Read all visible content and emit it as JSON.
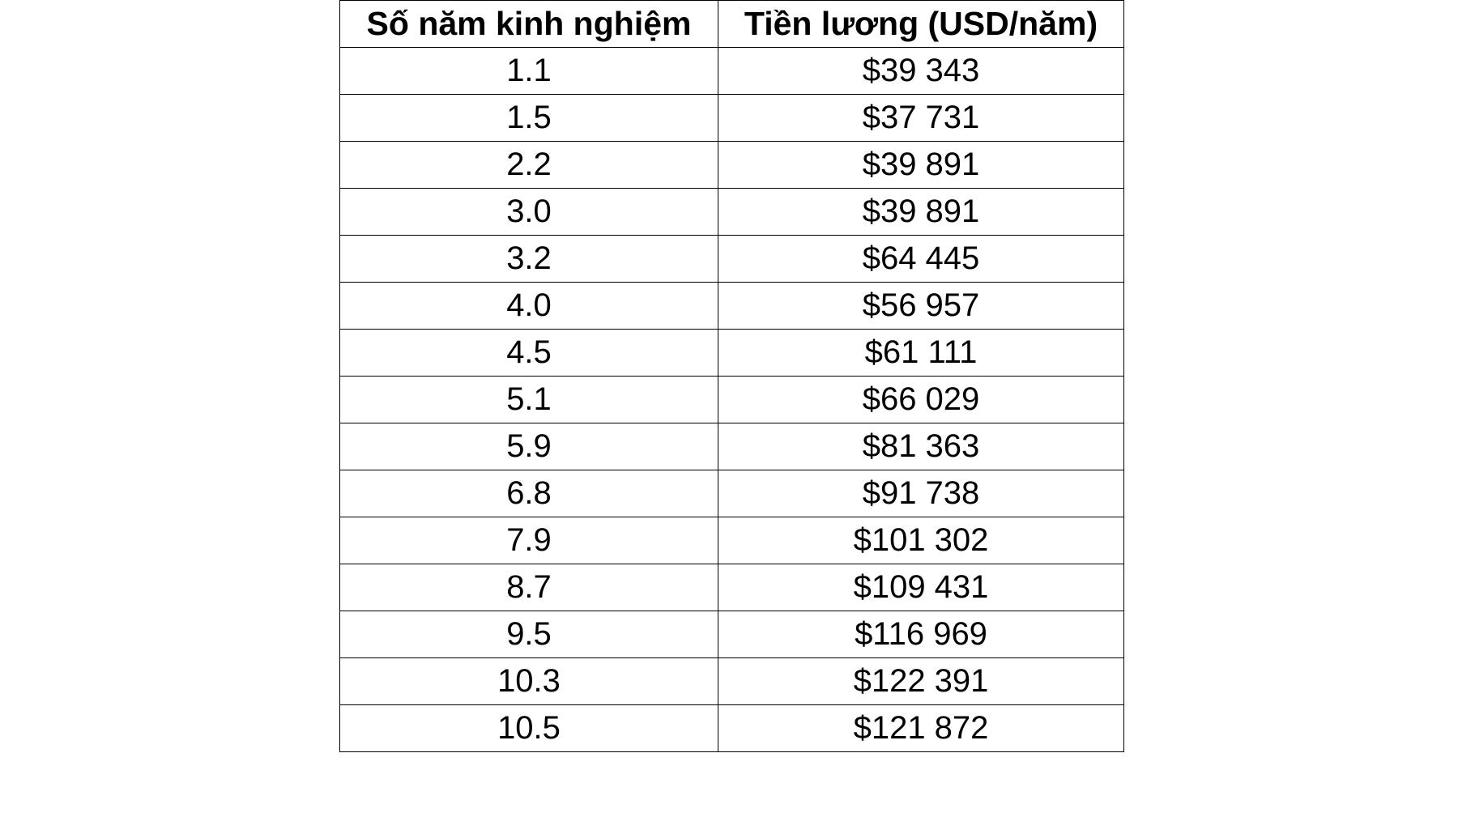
{
  "table": {
    "headers": [
      "Số năm kinh nghiệm",
      "Tiền lương (USD/năm)"
    ],
    "rows": [
      [
        "1.1",
        "$39 343"
      ],
      [
        "1.5",
        "$37 731"
      ],
      [
        "2.2",
        "$39 891"
      ],
      [
        "3.0",
        "$39 891"
      ],
      [
        "3.2",
        "$64 445"
      ],
      [
        "4.0",
        "$56 957"
      ],
      [
        "4.5",
        "$61 111"
      ],
      [
        "5.1",
        "$66 029"
      ],
      [
        "5.9",
        "$81 363"
      ],
      [
        "6.8",
        "$91 738"
      ],
      [
        "7.9",
        "$101 302"
      ],
      [
        "8.7",
        "$109 431"
      ],
      [
        "9.5",
        "$116 969"
      ],
      [
        "10.3",
        "$122 391"
      ],
      [
        "10.5",
        "$121 872"
      ]
    ]
  }
}
